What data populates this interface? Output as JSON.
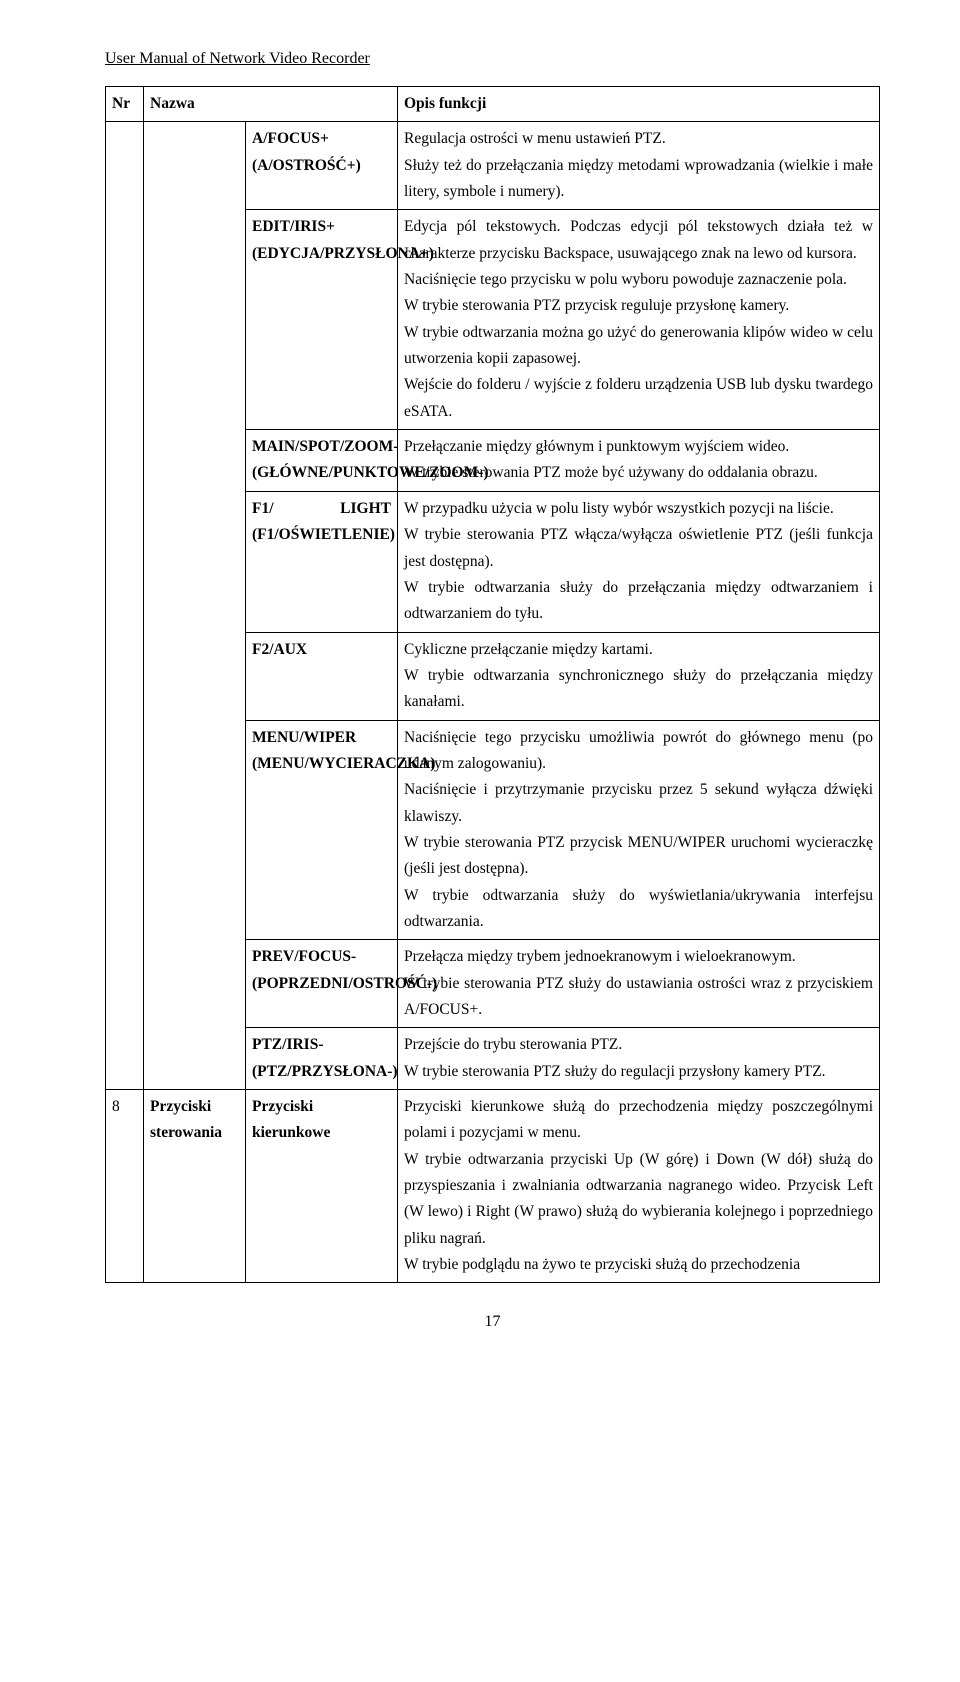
{
  "running_head": "User Manual of Network Video Recorder",
  "page_number": "17",
  "header": {
    "nr": "Nr",
    "name": "Nazwa",
    "desc": "Opis funkcji"
  },
  "rows": [
    {
      "btn": "A/FOCUS+ (A/OSTROŚĆ+)",
      "desc": "Regulacja ostrości w menu ustawień PTZ.\nSłuży też do przełączania między metodami wprowadzania (wielkie i małe litery, symbole i numery)."
    },
    {
      "btn": "EDIT/IRIS+ (EDYCJA/PRZYSŁONA+)",
      "desc": "Edycja pól tekstowych. Podczas edycji pól tekstowych działa też w charakterze przycisku Backspace, usuwającego znak na lewo od kursora.\nNaciśnięcie tego przycisku w polu wyboru powoduje zaznaczenie pola.\nW trybie sterowania PTZ przycisk reguluje przysłonę kamery.\nW trybie odtwarzania można go użyć do generowania klipów wideo w celu utworzenia kopii zapasowej.\nWejście do folderu / wyjście z folderu urządzenia USB lub dysku twardego eSATA."
    },
    {
      "btn": "MAIN/SPOT/ZOOM- (GŁÓWNE/PUNKTOWE/ZOOM-)",
      "desc": "Przełączanie między głównym i punktowym wyjściem wideo.\nW trybie sterowania PTZ może być używany do oddalania obrazu."
    },
    {
      "btn": "F1/ LIGHT (F1/OŚWIETLENIE)",
      "desc": "W przypadku użycia w polu listy wybór wszystkich pozycji na liście.\nW trybie sterowania PTZ włącza/wyłącza oświetlenie PTZ (jeśli funkcja jest dostępna).\nW trybie odtwarzania służy do przełączania między odtwarzaniem i odtwarzaniem do tyłu."
    },
    {
      "btn": "F2/AUX",
      "desc": "Cykliczne przełączanie między kartami.\nW trybie odtwarzania synchronicznego służy do przełączania między kanałami."
    },
    {
      "btn": "MENU/WIPER (MENU/WYCIERACZKA)",
      "desc": "Naciśnięcie tego przycisku umożliwia powrót do głównego menu (po udanym zalogowaniu).\nNaciśnięcie i przytrzymanie przycisku przez 5 sekund wyłącza dźwięki klawiszy.\nW trybie sterowania PTZ przycisk MENU/WIPER uruchomi wycieraczkę (jeśli jest dostępna).\nW trybie odtwarzania służy do wyświetlania/ukrywania interfejsu odtwarzania."
    },
    {
      "btn": "PREV/FOCUS- (POPRZEDNI/OSTROŚĆ-)",
      "desc": "Przełącza między trybem jednoekranowym i wieloekranowym.\nW trybie sterowania PTZ służy do ustawiania ostrości wraz z przyciskiem A/FOCUS+."
    },
    {
      "btn": "PTZ/IRIS- (PTZ/PRZYSŁONA-)",
      "desc": "Przejście do trybu sterowania PTZ.\nW trybie sterowania PTZ służy do regulacji przysłony kamery PTZ."
    },
    {
      "nr": "8",
      "name": "Przyciski sterowania",
      "btn": "Przyciski kierunkowe",
      "desc": "Przyciski kierunkowe służą do przechodzenia między poszczególnymi polami i pozycjami w menu.\nW trybie odtwarzania przyciski Up (W górę) i Down (W dół) służą do przyspieszania i zwalniania odtwarzania nagranego wideo. Przycisk Left (W lewo) i Right (W prawo) służą do wybierania kolejnego i poprzedniego pliku nagrań.\nW trybie podglądu na żywo te przyciski służą do przechodzenia"
    }
  ]
}
